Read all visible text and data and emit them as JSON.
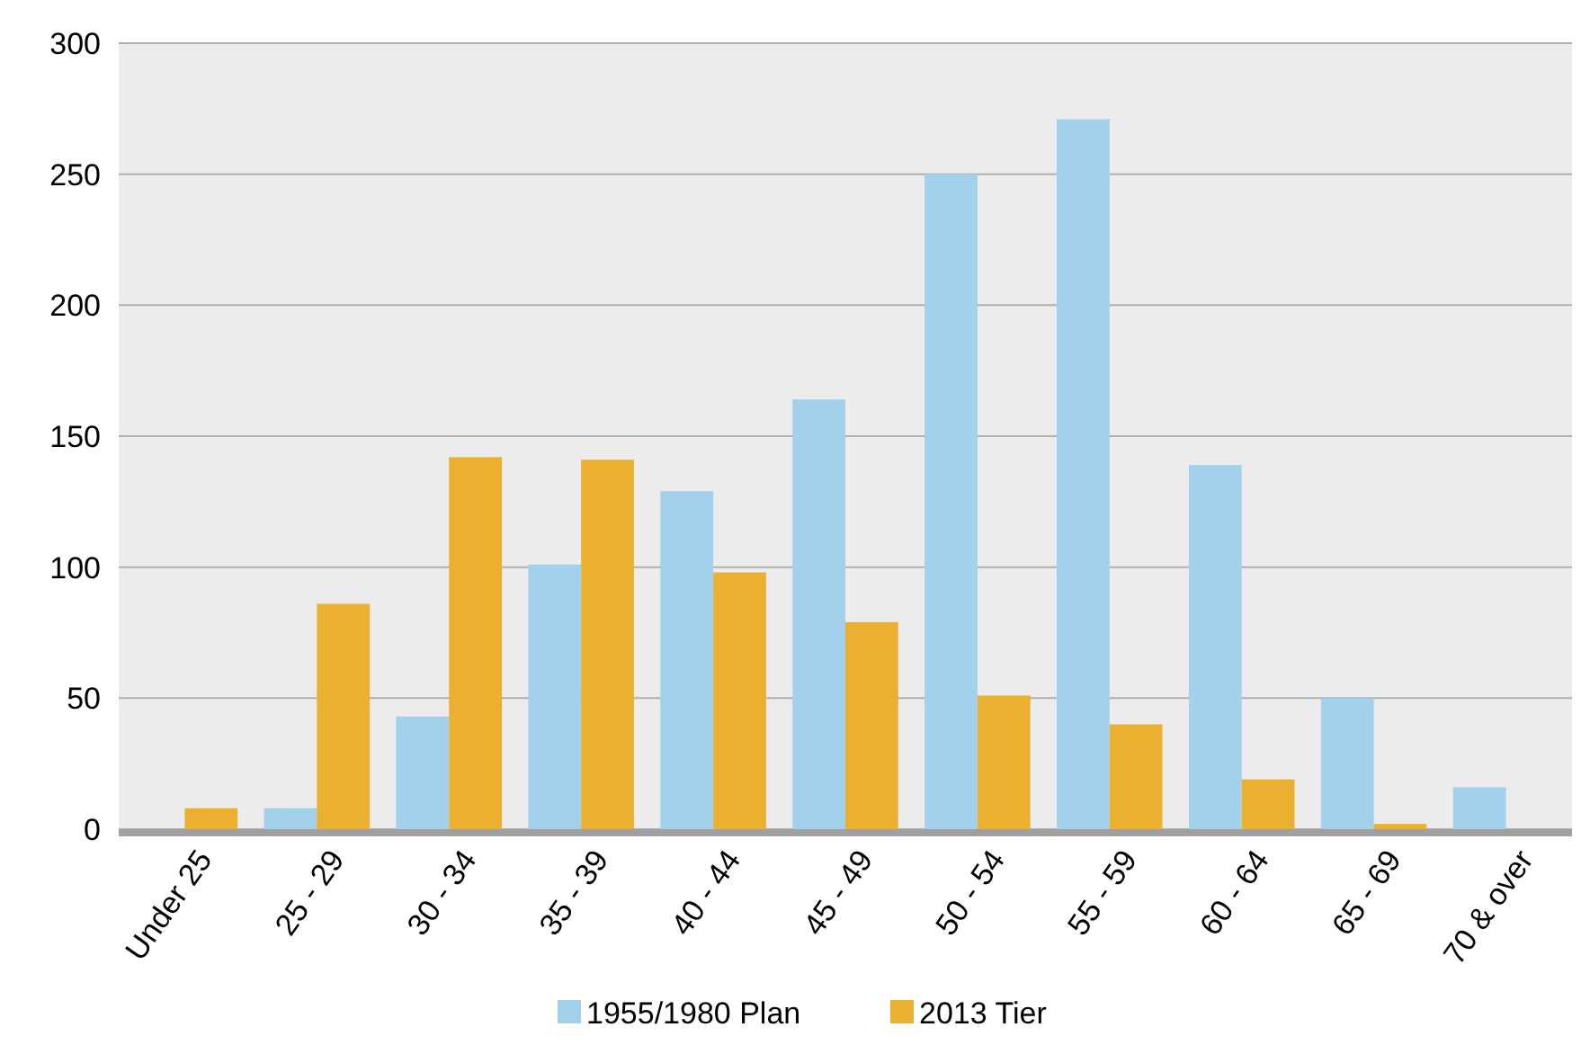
{
  "chart_data": {
    "type": "bar",
    "categories": [
      "Under 25",
      "25 - 29",
      "30 - 34",
      "35 - 39",
      "40 - 44",
      "45 - 49",
      "50 - 54",
      "55 - 59",
      "60 - 64",
      "65 - 69",
      "70 & over"
    ],
    "series": [
      {
        "name": "1955/1980 Plan",
        "color": "#a3d0ea",
        "values": [
          0,
          8,
          43,
          101,
          129,
          164,
          250,
          271,
          139,
          50,
          16
        ]
      },
      {
        "name": "2013 Tier",
        "color": "#ebb030",
        "values": [
          8,
          86,
          142,
          141,
          98,
          79,
          51,
          40,
          19,
          2,
          0
        ]
      }
    ],
    "ylim": [
      0,
      300
    ],
    "yticks": [
      0,
      50,
      100,
      150,
      200,
      250,
      300
    ],
    "grid": "y",
    "legend": "bottom"
  }
}
